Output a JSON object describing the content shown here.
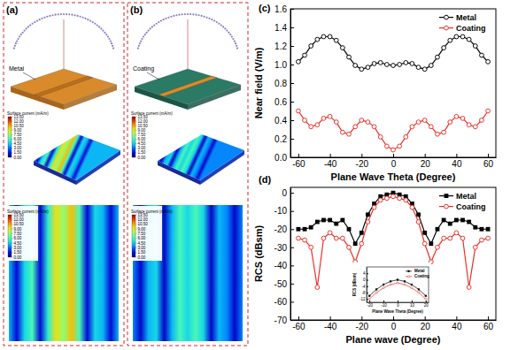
{
  "panels": [
    {
      "label": "(a)",
      "material": "Metal"
    },
    {
      "label": "(b)",
      "material": "Coating"
    }
  ],
  "colorbar": {
    "title": "Surface current (mA/m)",
    "range": [
      0,
      13.5
    ],
    "ticks": [
      {
        "value": 0,
        "label": "0.00"
      },
      {
        "value": 1.5,
        "label": "1.50"
      },
      {
        "value": 3,
        "label": "3.00"
      },
      {
        "value": 4.5,
        "label": "4.50"
      },
      {
        "value": 6,
        "label": "6.00"
      },
      {
        "value": 7.5,
        "label": "7.50"
      },
      {
        "value": 9,
        "label": "9.00"
      },
      {
        "value": 10.5,
        "label": "10.50"
      },
      {
        "value": 12,
        "label": "12.00"
      },
      {
        "value": 13.5,
        "label": "13.50"
      }
    ]
  },
  "chart_data": [
    {
      "type": "line",
      "title": "(c)",
      "x_label": "Plane Wave Theta (Degree)",
      "y_label": "Near field (V/m)",
      "x": [
        -60,
        -56,
        -52,
        -48,
        -44,
        -40,
        -36,
        -32,
        -28,
        -24,
        -20,
        -16,
        -12,
        -8,
        -4,
        0,
        4,
        8,
        12,
        16,
        20,
        24,
        28,
        32,
        36,
        40,
        44,
        48,
        52,
        56,
        60
      ],
      "xlim": [
        -65,
        65
      ],
      "xticks": [
        -60,
        -40,
        -20,
        0,
        20,
        40,
        60
      ],
      "ylim": [
        0,
        1.6
      ],
      "yticks": [
        {
          "value": 0,
          "label": "0.0"
        },
        0.2,
        0.4,
        0.6,
        0.8,
        {
          "value": 1,
          "label": "1.0"
        },
        1.2,
        1.4,
        1.6
      ],
      "legend": "top-right",
      "series": [
        {
          "name": "Metal",
          "color": "#000000",
          "marker": "circle",
          "values": [
            1.03,
            1.1,
            1.2,
            1.27,
            1.3,
            1.3,
            1.26,
            1.18,
            1.08,
            0.99,
            0.95,
            0.97,
            1.01,
            1.02,
            1.0,
            0.99,
            1.0,
            1.02,
            1.01,
            0.97,
            0.95,
            0.99,
            1.08,
            1.18,
            1.26,
            1.3,
            1.3,
            1.27,
            1.2,
            1.1,
            1.03
          ]
        },
        {
          "name": "Coating",
          "color": "#e8302a",
          "marker": "circle",
          "values": [
            0.5,
            0.4,
            0.33,
            0.35,
            0.42,
            0.44,
            0.38,
            0.27,
            0.25,
            0.33,
            0.4,
            0.38,
            0.33,
            0.22,
            0.12,
            0.08,
            0.12,
            0.22,
            0.33,
            0.38,
            0.4,
            0.33,
            0.25,
            0.27,
            0.38,
            0.44,
            0.42,
            0.35,
            0.33,
            0.4,
            0.5
          ]
        }
      ]
    },
    {
      "type": "line",
      "title": "(d)",
      "x_label": "Plane wave (Degree)",
      "y_label": "RCS (dBsm)",
      "x": [
        -60,
        -56,
        -52,
        -48,
        -44,
        -40,
        -36,
        -32,
        -28,
        -24,
        -20,
        -16,
        -12,
        -8,
        -4,
        0,
        4,
        8,
        12,
        16,
        20,
        24,
        28,
        32,
        36,
        40,
        44,
        48,
        52,
        56,
        60
      ],
      "xlim": [
        -65,
        65
      ],
      "xticks": [
        -60,
        -40,
        -20,
        0,
        20,
        40,
        60
      ],
      "ylim": [
        -70,
        3
      ],
      "yticks": [
        -70,
        -60,
        -50,
        -40,
        -30,
        -20,
        -10,
        0
      ],
      "legend": "top-right",
      "series": [
        {
          "name": "Metal",
          "color": "#000000",
          "marker": "square",
          "values": [
            -20,
            -20,
            -19,
            -16,
            -15,
            -15,
            -17,
            -15,
            -20,
            -28,
            -22,
            -12,
            -6,
            -2,
            -1,
            0,
            -1,
            -2,
            -6,
            -12,
            -22,
            -28,
            -20,
            -15,
            -17,
            -15,
            -15,
            -16,
            -19,
            -20,
            -20
          ]
        },
        {
          "name": "Coating",
          "color": "#e8302a",
          "marker": "circle",
          "values": [
            -25,
            -26,
            -30,
            -52,
            -25,
            -22,
            -25,
            -25,
            -30,
            -38,
            -28,
            -16,
            -8,
            -4,
            -3,
            -2,
            -3,
            -4,
            -8,
            -16,
            -28,
            -38,
            -30,
            -25,
            -25,
            -22,
            -25,
            -52,
            -30,
            -26,
            -25
          ]
        }
      ]
    },
    {
      "type": "line",
      "x_label": "Plane Wave Theta (Degree)",
      "y_label": "RCS (dBsm)",
      "x": [
        -20,
        -15,
        -10,
        -5,
        0,
        5,
        10,
        15,
        20
      ],
      "xlim": [
        -22,
        22
      ],
      "xticks": [
        -20,
        -10,
        0,
        10,
        20
      ],
      "ylim": [
        -14,
        8
      ],
      "yticks": [
        -12,
        -8,
        -4,
        0,
        4
      ],
      "legend": "top-right",
      "series": [
        {
          "name": "Metal",
          "color": "#000000",
          "marker": "square",
          "values": [
            -10,
            -6,
            -3,
            -1,
            0,
            -1,
            -3,
            -6,
            -10
          ]
        },
        {
          "name": "Coating",
          "color": "#e8302a",
          "marker": "circle",
          "values": [
            -12,
            -8,
            -5,
            -3,
            -2,
            -3,
            -5,
            -8,
            -12
          ]
        }
      ]
    }
  ]
}
